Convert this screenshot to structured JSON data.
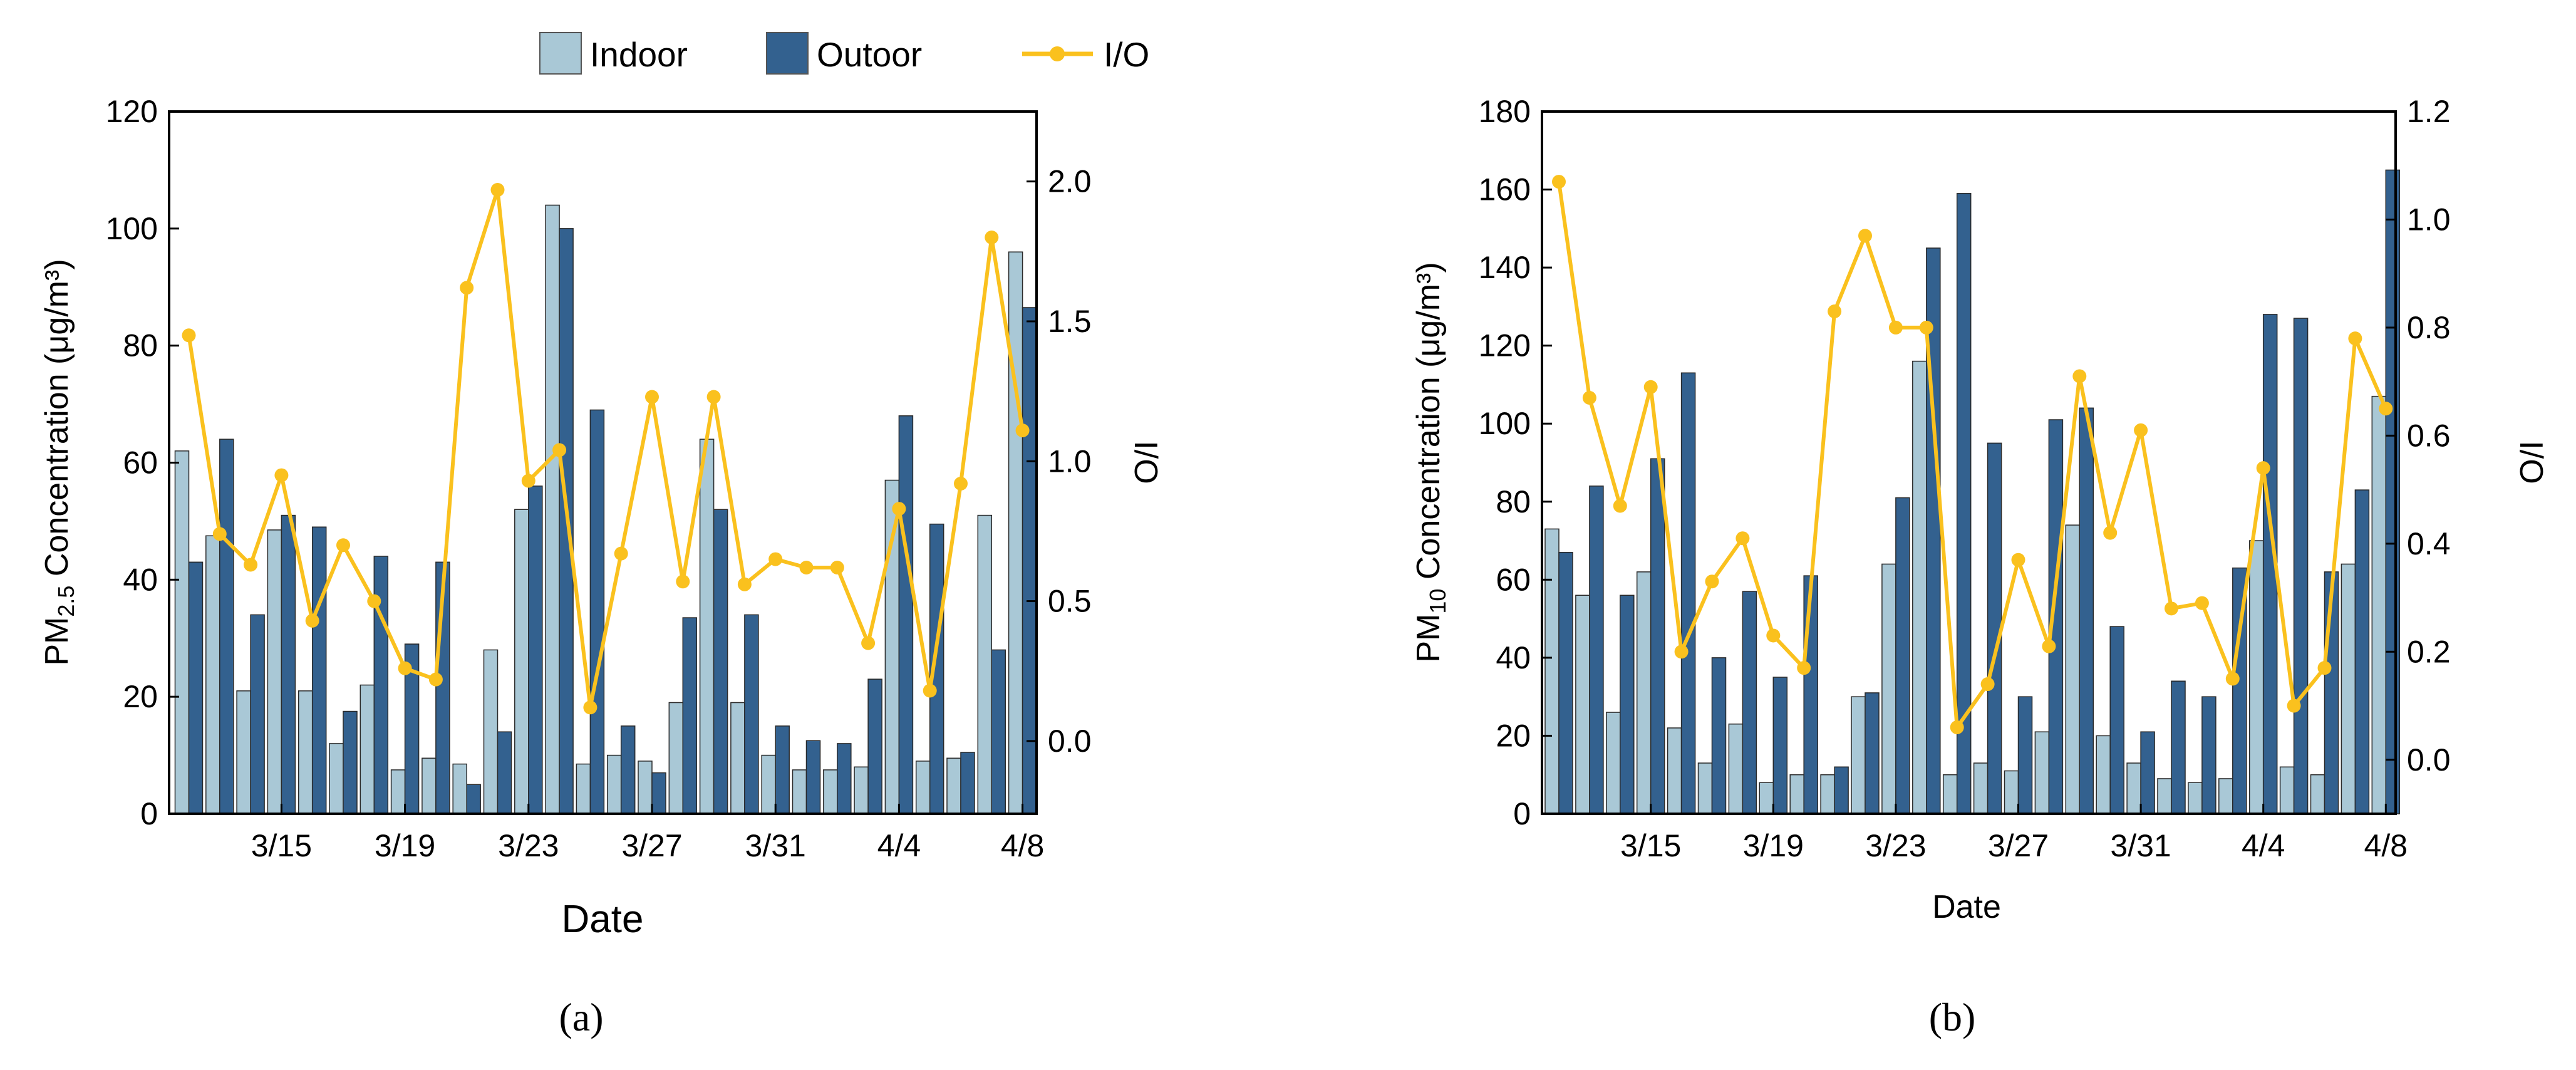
{
  "colors": {
    "indoor": "#a9c8d6",
    "outdoor": "#33618f",
    "io": "#fac11e",
    "axis": "#000000"
  },
  "legend": {
    "indoor": "Indoor",
    "outdoor": "Outoor",
    "io": "I/O"
  },
  "chart_data": [
    {
      "type": "bar",
      "panel_label": "(a)",
      "title": "",
      "xlabel": "Date",
      "ylabel_prefix": "PM",
      "ylabel_sub": "2.5",
      "ylabel_suffix": " Concentration (μg/m³)",
      "y2label": "I/O",
      "x_tick_labels": [
        "3/15",
        "3/19",
        "3/23",
        "3/27",
        "3/31",
        "4/4",
        "4/8"
      ],
      "x_tick_dates": [
        "3/15",
        "3/19",
        "3/23",
        "3/27",
        "3/31",
        "4/4",
        "4/8"
      ],
      "categories": [
        "3/12",
        "3/13",
        "3/14",
        "3/15",
        "3/16",
        "3/17",
        "3/18",
        "3/19",
        "3/20",
        "3/21",
        "3/22",
        "3/23",
        "3/24",
        "3/25",
        "3/26",
        "3/27",
        "3/28",
        "3/29",
        "3/30",
        "3/31",
        "4/1",
        "4/2",
        "4/3",
        "4/4",
        "4/5",
        "4/6",
        "4/7",
        "4/8"
      ],
      "ylim": [
        0,
        120
      ],
      "yticks": [
        0,
        20,
        40,
        60,
        80,
        100,
        120
      ],
      "y2lim": [
        -0.26,
        2.25
      ],
      "y2ticks": [
        "0.0",
        "0.5",
        "1.0",
        "1.5",
        "2.0"
      ],
      "series": [
        {
          "name": "Indoor",
          "axis": "left",
          "values": [
            62,
            47.5,
            21,
            48.5,
            21,
            12,
            22,
            7.5,
            9.5,
            8.5,
            28,
            52,
            104,
            8.5,
            10,
            9,
            19,
            64,
            19,
            10,
            7.5,
            7.5,
            8,
            57,
            9,
            9.5,
            51,
            96
          ]
        },
        {
          "name": "Outoor",
          "axis": "left",
          "values": [
            43,
            64,
            34,
            51,
            49,
            17.5,
            44,
            29,
            43,
            5,
            14,
            56,
            100,
            69,
            15,
            7,
            33.5,
            52,
            34,
            15,
            12.5,
            12,
            23,
            68,
            49.5,
            10.5,
            28,
            86.5
          ]
        },
        {
          "name": "I/O",
          "axis": "right",
          "type": "line",
          "values": [
            1.45,
            0.74,
            0.63,
            0.95,
            0.43,
            0.7,
            0.5,
            0.26,
            0.22,
            1.62,
            1.97,
            0.93,
            1.04,
            0.12,
            0.67,
            1.23,
            0.57,
            1.23,
            0.56,
            0.65,
            0.62,
            0.62,
            0.35,
            0.83,
            0.18,
            0.92,
            1.8,
            1.11
          ]
        }
      ]
    },
    {
      "type": "bar",
      "panel_label": "(b)",
      "title": "",
      "xlabel": "Date",
      "ylabel_prefix": "PM",
      "ylabel_sub": "10",
      "ylabel_suffix": " Concentration (μg/m³)",
      "y2label": "I/O",
      "x_tick_labels": [
        "3/15",
        "3/19",
        "3/23",
        "3/27",
        "3/31",
        "4/4",
        "4/8"
      ],
      "x_tick_dates": [
        "3/15",
        "3/19",
        "3/23",
        "3/27",
        "3/31",
        "4/4",
        "4/8"
      ],
      "categories": [
        "3/12",
        "3/13",
        "3/14",
        "3/15",
        "3/16",
        "3/17",
        "3/18",
        "3/19",
        "3/20",
        "3/21",
        "3/22",
        "3/23",
        "3/24",
        "3/25",
        "3/26",
        "3/27",
        "3/28",
        "3/29",
        "3/30",
        "3/31",
        "4/1",
        "4/2",
        "4/3",
        "4/4",
        "4/5",
        "4/6",
        "4/7",
        "4/8"
      ],
      "ylim": [
        0,
        180
      ],
      "yticks": [
        0,
        20,
        40,
        60,
        80,
        100,
        120,
        140,
        160,
        180
      ],
      "y2lim": [
        -0.1,
        1.2
      ],
      "y2ticks": [
        "0.0",
        "0.2",
        "0.4",
        "0.6",
        "0.8",
        "1.0",
        "1.2"
      ],
      "series": [
        {
          "name": "Indoor",
          "axis": "left",
          "values": [
            73,
            56,
            26,
            62,
            22,
            13,
            23,
            8,
            10,
            10,
            30,
            64,
            116,
            10,
            13,
            11,
            21,
            74,
            20,
            13,
            9,
            8,
            9,
            70,
            12,
            10,
            64,
            107
          ]
        },
        {
          "name": "Outoor",
          "axis": "left",
          "values": [
            67,
            84,
            56,
            91,
            113,
            40,
            57,
            35,
            61,
            12,
            31,
            81,
            145,
            159,
            95,
            30,
            101,
            104,
            48,
            21,
            34,
            30,
            63,
            128,
            127,
            62,
            83,
            165
          ]
        },
        {
          "name": "I/O",
          "axis": "right",
          "type": "line",
          "values": [
            1.07,
            0.67,
            0.47,
            0.69,
            0.2,
            0.33,
            0.41,
            0.23,
            0.17,
            0.83,
            0.97,
            0.8,
            0.8,
            0.06,
            0.14,
            0.37,
            0.21,
            0.71,
            0.42,
            0.61,
            0.28,
            0.29,
            0.15,
            0.54,
            0.1,
            0.17,
            0.78,
            0.65
          ]
        }
      ]
    }
  ]
}
